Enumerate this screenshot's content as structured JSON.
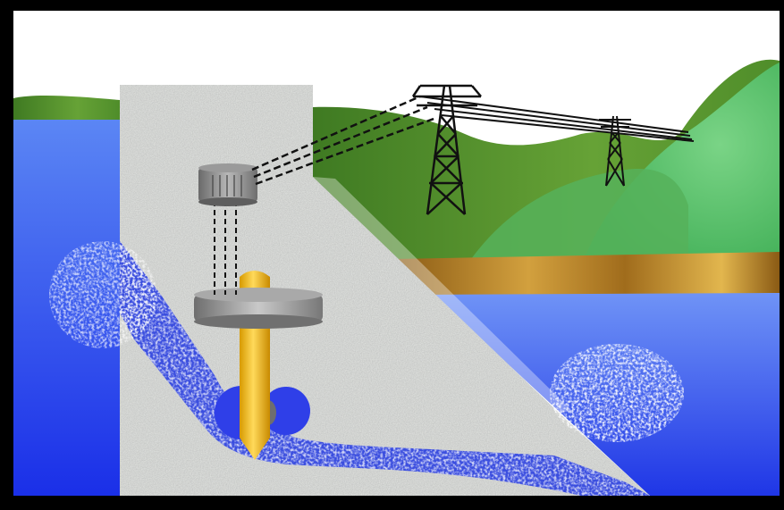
{
  "diagram": {
    "subject": "hydroelectric-dam-cross-section",
    "labels": [],
    "colors": {
      "frame": "#000000",
      "sky": "#ffffff",
      "reservoir_top": "#5b86f4",
      "reservoir_bottom": "#1a2fe8",
      "tailwater_top": "#6f93f6",
      "tailwater_bottom": "#1f36e6",
      "concrete": "#d8dad7",
      "hill_dark": "#4f8d2a",
      "hill_light": "#5cc26a",
      "riverbank_gold": "#b8862c",
      "penstock_water": "#2a3fe0",
      "generator_gray": "#8a8a8a",
      "shaft_gold": "#f2b400",
      "tower_black": "#111111"
    },
    "icons": [
      "transmission-tower-icon",
      "generator-icon",
      "turbine-icon"
    ]
  }
}
